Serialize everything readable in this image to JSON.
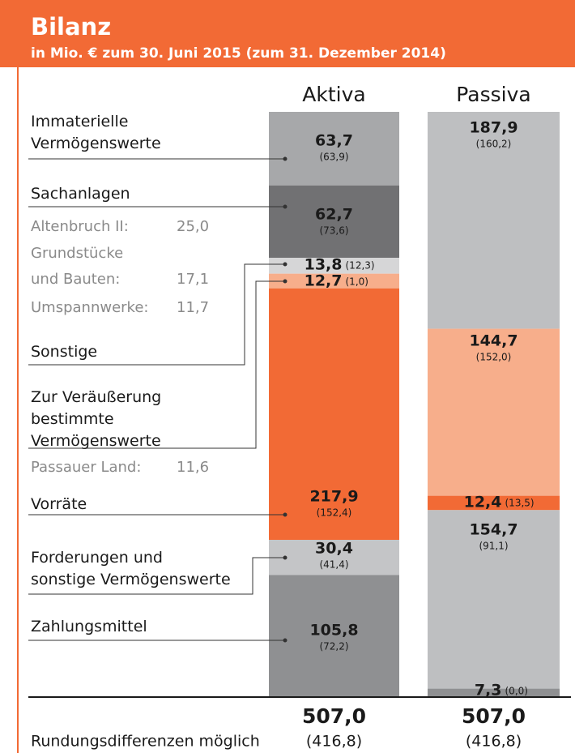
{
  "chart_data": {
    "type": "stacked_bar",
    "title": "Bilanz",
    "subtitle": "in Mio. € zum 30. Juni 2015 (zum 31. Dezember 2014)",
    "stacks": [
      {
        "name": "Aktiva",
        "total": {
          "value": 507.0,
          "label": "507,0",
          "prior_label": "(416,8)"
        },
        "segments": [
          {
            "name": "Immaterielle Vermögenswerte",
            "value": 63.7,
            "value_label": "63,7",
            "prior_label": "(63,9)",
            "color": "#a7a8aa"
          },
          {
            "name": "Sachanlagen",
            "value": 62.7,
            "value_label": "62,7",
            "prior_label": "(73,6)",
            "color": "#717173",
            "details": [
              {
                "name": "Altenbruch II:",
                "value": "25,0"
              },
              {
                "name": "Grundstücke und Bauten:",
                "value": "17,1"
              },
              {
                "name": "Umspannwerke:",
                "value": "11,7"
              }
            ]
          },
          {
            "name": "Sonstige",
            "value": 13.8,
            "value_label": "13,8",
            "prior_label": "(12,3)",
            "color": "#d6d6d7"
          },
          {
            "name": "Zur Veräußerung bestimmte Vermögenswerte",
            "value": 12.7,
            "value_label": "12,7",
            "prior_label": "(1,0)",
            "color": "#f7ae8b",
            "details": [
              {
                "name": "Passauer Land:",
                "value": "11,6"
              }
            ]
          },
          {
            "name": "Vorräte",
            "value": 217.9,
            "value_label": "217,9",
            "prior_label": "(152,4)",
            "color": "#f26a35"
          },
          {
            "name": "Forderungen und sonstige Vermögenswerte",
            "value": 30.4,
            "value_label": "30,4",
            "prior_label": "(41,4)",
            "color": "#c4c5c7"
          },
          {
            "name": "Zahlungsmittel",
            "value": 105.8,
            "value_label": "105,8",
            "prior_label": "(72,2)",
            "color": "#8f9092"
          }
        ]
      },
      {
        "name": "Passiva",
        "total": {
          "value": 507.0,
          "label": "507,0",
          "prior_label": "(416,8)"
        },
        "segments": [
          {
            "value": 187.9,
            "value_label": "187,9",
            "prior_label": "(160,2)",
            "color": "#bebfc1"
          },
          {
            "value": 144.7,
            "value_label": "144,7",
            "prior_label": "(152,0)",
            "color": "#f7ae8b"
          },
          {
            "value": 12.4,
            "value_label": "12,4",
            "prior_label": "(13,5)",
            "color": "#f26a35"
          },
          {
            "value": 154.7,
            "value_label": "154,7",
            "prior_label": "(91,1)",
            "color": "#bebfc1"
          },
          {
            "value": 7.3,
            "value_label": "7,3",
            "prior_label": "(0,0)",
            "color": "#8f9092"
          }
        ]
      }
    ],
    "note": "Rundungsdifferenzen möglich"
  }
}
